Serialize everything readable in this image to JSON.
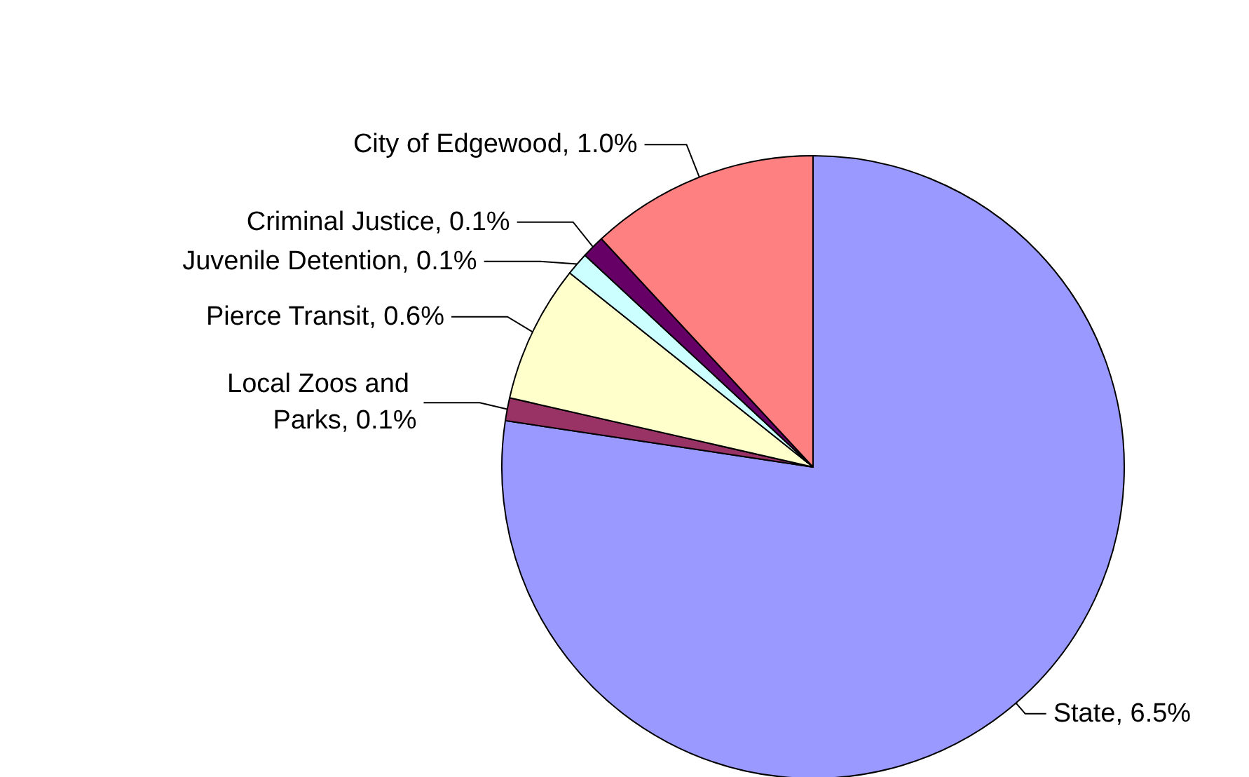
{
  "chart_data": {
    "type": "pie",
    "categories": [
      "State",
      "Local Zoos and Parks",
      "Pierce Transit",
      "Juvenile Detention",
      "Criminal Justice",
      "City of Edgewood"
    ],
    "values": [
      6.5,
      0.1,
      0.6,
      0.1,
      0.1,
      1.0
    ],
    "value_labels": [
      "6.5%",
      "0.1%",
      "0.6%",
      "0.1%",
      "0.1%",
      "1.0%"
    ],
    "colors": [
      "#9999ff",
      "#993366",
      "#ffffcc",
      "#ccffff",
      "#660066",
      "#ff8080"
    ],
    "legend": false
  }
}
